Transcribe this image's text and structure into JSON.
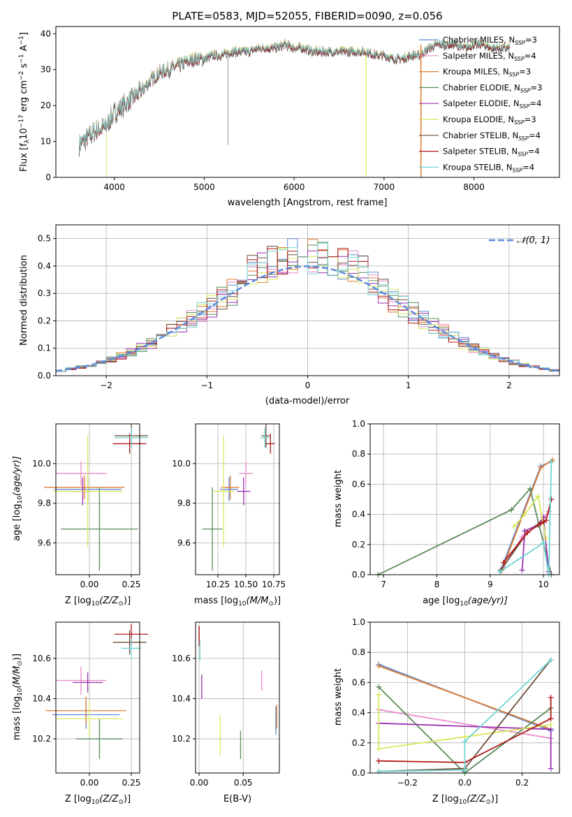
{
  "colors": {
    "chab_miles": "#5b8bd9",
    "salp_miles": "#e88ac8",
    "krou_miles": "#e07b2e",
    "chab_elod": "#5a8a5a",
    "salp_elod": "#9b2fb0",
    "krou_elod": "#d8e85a",
    "chab_stel": "#6b4e3a",
    "salp_stel": "#b01818",
    "krou_stel": "#70d4d4",
    "spec_main": "#7a7a7a",
    "gauss": "#5b8bd9",
    "grid": "#b0b0b0"
  },
  "spectrum": {
    "title": "PLATE=0583, MJD=52055, FIBERID=0090, z=0.056",
    "xlabel": "wavelength [Angstrom, rest frame]",
    "ylabel_a": "Flux [f",
    "ylabel_b": "λ",
    "ylabel_c": "10",
    "ylabel_d": "−17",
    "ylabel_e": " erg cm",
    "ylabel_f": "−2",
    "ylabel_g": " s",
    "ylabel_h": "−1",
    "ylabel_i": " A",
    "ylabel_j": "−1",
    "ylabel_k": "]",
    "xlim": [
      3350,
      8950
    ],
    "ylim": [
      0,
      42
    ],
    "xticks": [
      "4000",
      "5000",
      "6000",
      "7000",
      "8000"
    ],
    "yticks": [
      "0",
      "10",
      "20",
      "30",
      "40"
    ],
    "legend": [
      {
        "pre": "Chabrier MILES, N",
        "sub": "SSP",
        "post": "=3",
        "color": "chab_miles"
      },
      {
        "pre": "Salpeter MILES, N",
        "sub": "SSP",
        "post": "=4",
        "color": "salp_miles"
      },
      {
        "pre": "Kroupa MILES, N",
        "sub": "SSP",
        "post": "=3",
        "color": "krou_miles"
      },
      {
        "pre": "Chabrier ELODIE, N",
        "sub": "SSP",
        "post": "=3",
        "color": "chab_elod"
      },
      {
        "pre": "Salpeter ELODIE, N",
        "sub": "SSP",
        "post": "=4",
        "color": "salp_elod"
      },
      {
        "pre": "Kroupa ELODIE, N",
        "sub": "SSP",
        "post": "=3",
        "color": "krou_elod"
      },
      {
        "pre": "Chabrier STELIB, N",
        "sub": "SSP",
        "post": "=4",
        "color": "chab_stel"
      },
      {
        "pre": "Salpeter STELIB, N",
        "sub": "SSP",
        "post": "=4",
        "color": "salp_stel"
      },
      {
        "pre": "Kroupa STELIB, N",
        "sub": "SSP",
        "post": "=4",
        "color": "krou_stel"
      }
    ]
  },
  "residuals": {
    "xlabel": "(data-model)/error",
    "ylabel": "Normed distribution",
    "legend_label": "𝒩(0, 1)",
    "xlim": [
      -2.5,
      2.5
    ],
    "ylim": [
      0,
      0.55
    ],
    "xticks": [
      "−2",
      "−1",
      "0",
      "1",
      "2"
    ],
    "yticks": [
      "0.0",
      "0.1",
      "0.2",
      "0.3",
      "0.4",
      "0.5"
    ]
  },
  "age_Z": {
    "xlabel_a": "Z [log",
    "xlabel_b": "10",
    "xlabel_c": "(Z/Z",
    "xlabel_d": "⊙",
    "xlabel_e": ")]",
    "ylabel_a": "age  [log",
    "ylabel_b": "10",
    "ylabel_c": "(age/yr)]",
    "xlim": [
      -0.2,
      0.3
    ],
    "ylim": [
      9.44,
      10.2
    ],
    "xticks": [
      "0.00",
      "0.25"
    ],
    "yticks": [
      "9.6",
      "9.8",
      "10.0"
    ]
  },
  "age_mass": {
    "xlabel_a": "mass [log",
    "xlabel_b": "10",
    "xlabel_c": "(M/M",
    "xlabel_d": "⊙",
    "xlabel_e": ")]",
    "xlim": [
      10.05,
      10.8
    ],
    "ylim": [
      9.44,
      10.2
    ],
    "xticks": [
      "10.25",
      "10.50",
      "10.75"
    ],
    "yticks": [
      "9.6",
      "9.8",
      "10.0"
    ]
  },
  "mw_age": {
    "xlabel_a": "age  [log",
    "xlabel_b": "10",
    "xlabel_c": "(age/yr)]",
    "ylabel": "mass weight",
    "xlim": [
      6.75,
      10.3
    ],
    "ylim": [
      0,
      1
    ],
    "xticks": [
      "7",
      "8",
      "9",
      "10"
    ],
    "yticks": [
      "0.0",
      "0.2",
      "0.4",
      "0.6",
      "0.8",
      "1.0"
    ]
  },
  "mass_Z": {
    "xlabel_a": "Z [log",
    "xlabel_b": "10",
    "xlabel_c": "(Z/Z",
    "xlabel_d": "⊙",
    "xlabel_e": ")]",
    "ylabel_a": "mass [log",
    "ylabel_b": "10",
    "ylabel_c": "(M/M",
    "ylabel_d": "⊙",
    "ylabel_e": ")]",
    "xlim": [
      -0.2,
      0.3
    ],
    "ylim": [
      10.03,
      10.78
    ],
    "xticks": [
      "0.00",
      "0.25"
    ],
    "yticks": [
      "10.2",
      "10.4",
      "10.6"
    ]
  },
  "mass_ebv": {
    "xlabel": "E(B-V)",
    "xlim": [
      -0.004,
      0.091
    ],
    "ylim": [
      10.03,
      10.78
    ],
    "xticks": [
      "0.00",
      "0.05"
    ],
    "yticks": [
      "10.2",
      "10.4",
      "10.6"
    ]
  },
  "mw_Z": {
    "xlabel_a": "Z [log",
    "xlabel_b": "10",
    "xlabel_c": "(Z/Z",
    "xlabel_d": "⊙",
    "xlabel_e": ")]",
    "ylabel": "mass weight",
    "xlim": [
      -0.33,
      0.33
    ],
    "ylim": [
      0,
      1
    ],
    "xticks": [
      "−0.2",
      "0.0",
      "0.2"
    ],
    "yticks": [
      "0.0",
      "0.2",
      "0.4",
      "0.6",
      "0.8",
      "1.0"
    ]
  },
  "chart_data": [
    {
      "type": "line",
      "title": "PLATE=0583, MJD=52055, FIBERID=0090, z=0.056",
      "xlabel": "wavelength [Angstrom, rest frame]",
      "ylabel": "Flux [fλ 10^-17 erg cm^-2 s^-1 A^-1]",
      "xlim": [
        3350,
        8950
      ],
      "ylim": [
        0,
        42
      ],
      "continuum": {
        "x": [
          3600,
          3700,
          3800,
          3900,
          4000,
          4100,
          4200,
          4300,
          4400,
          4500,
          4600,
          4700,
          4800,
          4900,
          5000,
          5100,
          5200,
          5300,
          5400,
          5500,
          5600,
          5700,
          5800,
          5900,
          6000,
          6100,
          6200,
          6300,
          6400,
          6500,
          6600,
          6700,
          6800,
          6900,
          7000,
          7100,
          7200,
          7300,
          7400,
          7500,
          7600,
          7700,
          7800,
          7900,
          8000,
          8100,
          8200,
          8300,
          8400
        ],
        "y": [
          9,
          11,
          13,
          14,
          18,
          20,
          22,
          24,
          27,
          29,
          30,
          31,
          32,
          33,
          33,
          34,
          34,
          35,
          35,
          35,
          36,
          36,
          36,
          37,
          36,
          36,
          35,
          35,
          35,
          35,
          35,
          35,
          35,
          34,
          34,
          33,
          33,
          34,
          34,
          36,
          37,
          37,
          37,
          36,
          37,
          37,
          36,
          36,
          36
        ]
      },
      "legend": [
        "Chabrier MILES, N_SSP=3",
        "Salpeter MILES, N_SSP=4",
        "Kroupa MILES, N_SSP=3",
        "Chabrier ELODIE, N_SSP=3",
        "Salpeter ELODIE, N_SSP=4",
        "Kroupa ELODIE, N_SSP=3",
        "Chabrier STELIB, N_SSP=4",
        "Salpeter STELIB, N_SSP=4",
        "Kroupa STELIB, N_SSP=4"
      ],
      "legend_position": "upper-right"
    },
    {
      "type": "line",
      "xlabel": "(data-model)/error",
      "ylabel": "Normed distribution",
      "xlim": [
        -2.5,
        2.5
      ],
      "ylim": [
        0,
        0.55
      ],
      "grid": true,
      "histogram_style": "step",
      "series": [
        {
          "name": "𝒩(0, 1)",
          "style": "dashed",
          "function": "normal",
          "mu": 0,
          "sigma": 1
        }
      ],
      "legend_position": "upper-right"
    },
    {
      "type": "scatter",
      "panel": "age vs Z",
      "xlim": [
        -0.2,
        0.3
      ],
      "ylim": [
        9.44,
        10.2
      ],
      "points": [
        {
          "color": "chab_miles",
          "x": -0.01,
          "xerr": 0.2,
          "y": 9.87,
          "yerr": 0.06
        },
        {
          "color": "salp_miles",
          "x": -0.05,
          "xerr": 0.15,
          "y": 9.95,
          "yerr": 0.06
        },
        {
          "color": "krou_miles",
          "x": -0.03,
          "xerr": 0.24,
          "y": 9.88,
          "yerr": 0.06
        },
        {
          "color": "chab_elod",
          "x": 0.06,
          "xerr": 0.23,
          "y": 9.67,
          "yerr": 0.21
        },
        {
          "color": "salp_elod",
          "x": -0.04,
          "xerr": 0.06,
          "y": 9.86,
          "yerr": 0.07
        },
        {
          "color": "krou_elod",
          "x": -0.01,
          "xerr": 0.21,
          "y": 9.86,
          "yerr": 0.28
        },
        {
          "color": "chab_stel",
          "x": 0.25,
          "xerr": 0.1,
          "y": 10.14,
          "yerr": 0.06
        },
        {
          "color": "salp_stel",
          "x": 0.24,
          "xerr": 0.1,
          "y": 10.1,
          "yerr": 0.05
        },
        {
          "color": "krou_stel",
          "x": 0.25,
          "xerr": 0.1,
          "y": 10.13,
          "yerr": 0.05
        }
      ]
    },
    {
      "type": "scatter",
      "panel": "age vs mass",
      "xlim": [
        10.05,
        10.8
      ],
      "ylim": [
        9.44,
        10.2
      ],
      "points": [
        {
          "color": "chab_miles",
          "x": 10.35,
          "xerr": 0.08,
          "y": 9.87,
          "yerr": 0.06
        },
        {
          "color": "salp_miles",
          "x": 10.5,
          "xerr": 0.06,
          "y": 9.95,
          "yerr": 0.06
        },
        {
          "color": "krou_miles",
          "x": 10.36,
          "xerr": 0.08,
          "y": 9.88,
          "yerr": 0.06
        },
        {
          "color": "chab_elod",
          "x": 10.2,
          "xerr": 0.09,
          "y": 9.67,
          "yerr": 0.21
        },
        {
          "color": "salp_elod",
          "x": 10.48,
          "xerr": 0.06,
          "y": 9.86,
          "yerr": 0.07
        },
        {
          "color": "krou_elod",
          "x": 10.3,
          "xerr": 0.1,
          "y": 9.86,
          "yerr": 0.28
        },
        {
          "color": "chab_stel",
          "x": 10.68,
          "xerr": 0.04,
          "y": 10.14,
          "yerr": 0.06
        },
        {
          "color": "salp_stel",
          "x": 10.72,
          "xerr": 0.04,
          "y": 10.1,
          "yerr": 0.05
        },
        {
          "color": "krou_stel",
          "x": 10.67,
          "xerr": 0.04,
          "y": 10.13,
          "yerr": 0.05
        }
      ]
    },
    {
      "type": "line",
      "panel": "mass weight vs age",
      "xlabel": "age [log10(age/yr)]",
      "ylabel": "mass weight",
      "xlim": [
        6.75,
        10.3
      ],
      "ylim": [
        0,
        1
      ],
      "grid": true,
      "series": [
        {
          "color": "chab_miles",
          "x": [
            9.2,
            9.95,
            10.15
          ],
          "y": [
            0.03,
            0.72,
            0.75
          ]
        },
        {
          "color": "salp_miles",
          "x": [
            9.25,
            9.6,
            9.9,
            10.1
          ],
          "y": [
            0.05,
            0.25,
            0.33,
            0.42
          ]
        },
        {
          "color": "krou_miles",
          "x": [
            9.22,
            9.95,
            10.17
          ],
          "y": [
            0.03,
            0.71,
            0.76
          ]
        },
        {
          "color": "chab_elod",
          "x": [
            6.9,
            9.4,
            9.75,
            10.15
          ],
          "y": [
            0.0,
            0.43,
            0.57,
            0.0
          ]
        },
        {
          "color": "salp_elod",
          "x": [
            9.6,
            9.65,
            9.9,
            10.0,
            10.1
          ],
          "y": [
            0.03,
            0.29,
            0.33,
            0.38,
            0.02
          ]
        },
        {
          "color": "krou_elod",
          "x": [
            9.45,
            9.65,
            9.9,
            10.05
          ],
          "y": [
            0.32,
            0.4,
            0.52,
            0.24
          ]
        },
        {
          "color": "chab_stel",
          "x": [
            9.2,
            9.7,
            9.9,
            10.0
          ],
          "y": [
            0.03,
            0.28,
            0.33,
            0.35
          ]
        },
        {
          "color": "salp_stel",
          "x": [
            9.25,
            9.7,
            9.95,
            10.05,
            10.15
          ],
          "y": [
            0.08,
            0.28,
            0.34,
            0.36,
            0.5
          ]
        },
        {
          "color": "krou_stel",
          "x": [
            9.18,
            10.0,
            10.1,
            10.15
          ],
          "y": [
            0.02,
            0.21,
            0.0,
            0.75
          ]
        }
      ]
    },
    {
      "type": "scatter",
      "panel": "mass vs Z",
      "xlim": [
        -0.2,
        0.3
      ],
      "ylim": [
        10.03,
        10.78
      ],
      "points": [
        {
          "color": "chab_miles",
          "x": -0.02,
          "xerr": 0.2,
          "y": 10.32,
          "yerr": 0.07
        },
        {
          "color": "salp_miles",
          "x": -0.05,
          "xerr": 0.15,
          "y": 10.49,
          "yerr": 0.07
        },
        {
          "color": "krou_miles",
          "x": -0.02,
          "xerr": 0.24,
          "y": 10.34,
          "yerr": 0.07
        },
        {
          "color": "chab_elod",
          "x": 0.06,
          "xerr": 0.14,
          "y": 10.2,
          "yerr": 0.1
        },
        {
          "color": "salp_elod",
          "x": -0.01,
          "xerr": 0.09,
          "y": 10.48,
          "yerr": 0.05
        },
        {
          "color": "krou_elod",
          "x": 0.0,
          "xerr": 0.2,
          "y": 10.3,
          "yerr": 0.09
        },
        {
          "color": "chab_stel",
          "x": 0.24,
          "xerr": 0.1,
          "y": 10.68,
          "yerr": 0.06
        },
        {
          "color": "salp_stel",
          "x": 0.25,
          "xerr": 0.1,
          "y": 10.72,
          "yerr": 0.05
        },
        {
          "color": "krou_stel",
          "x": 0.25,
          "xerr": 0.06,
          "y": 10.65,
          "yerr": 0.05
        }
      ]
    },
    {
      "type": "scatter",
      "panel": "mass vs E(B-V)",
      "xlim": [
        -0.004,
        0.091
      ],
      "ylim": [
        10.03,
        10.78
      ],
      "points": [
        {
          "color": "chab_miles",
          "x": 0.087,
          "y": 10.29,
          "yerr": 0.07
        },
        {
          "color": "salp_miles",
          "x": 0.071,
          "y": 10.49,
          "yerr": 0.05
        },
        {
          "color": "krou_miles",
          "x": 0.088,
          "y": 10.31,
          "yerr": 0.06
        },
        {
          "color": "chab_elod",
          "x": 0.047,
          "y": 10.17,
          "yerr": 0.07
        },
        {
          "color": "salp_elod",
          "x": 0.003,
          "y": 10.46,
          "yerr": 0.06
        },
        {
          "color": "krou_elod",
          "x": 0.024,
          "y": 10.22,
          "yerr": 0.1
        },
        {
          "color": "chab_stel",
          "x": 0.0,
          "y": 10.72,
          "yerr": 0.04
        },
        {
          "color": "salp_stel",
          "x": 0.0,
          "y": 10.71,
          "yerr": 0.05
        },
        {
          "color": "krou_stel",
          "x": 0.001,
          "y": 10.64,
          "yerr": 0.05
        }
      ]
    },
    {
      "type": "line",
      "panel": "mass weight vs Z",
      "xlabel": "Z [log10(Z/Z_sun)]",
      "ylabel": "mass weight",
      "xlim": [
        -0.33,
        0.33
      ],
      "ylim": [
        0,
        1
      ],
      "grid": true,
      "series": [
        {
          "color": "chab_miles",
          "x": [
            -0.3,
            0.3
          ],
          "y": [
            0.72,
            0.28
          ]
        },
        {
          "color": "salp_miles",
          "x": [
            -0.3,
            0.3
          ],
          "y": [
            0.42,
            0.23
          ]
        },
        {
          "color": "krou_miles",
          "x": [
            -0.3,
            0.3
          ],
          "y": [
            0.71,
            0.29
          ]
        },
        {
          "color": "chab_elod",
          "x": [
            -0.3,
            0.0,
            0.3
          ],
          "y": [
            0.57,
            0.0,
            0.43
          ]
        },
        {
          "color": "salp_elod",
          "x": [
            -0.3,
            0.3,
            0.3
          ],
          "y": [
            0.33,
            0.29,
            0.03
          ]
        },
        {
          "color": "krou_elod",
          "x": [
            -0.3,
            -0.3,
            0.0,
            0.3
          ],
          "y": [
            0.52,
            0.16,
            0.24,
            0.32
          ]
        },
        {
          "color": "chab_stel",
          "x": [
            -0.3,
            0.0,
            0.3
          ],
          "y": [
            0.01,
            0.03,
            0.75
          ]
        },
        {
          "color": "salp_stel",
          "x": [
            -0.3,
            0.0,
            0.3,
            0.3
          ],
          "y": [
            0.08,
            0.07,
            0.36,
            0.5
          ]
        },
        {
          "color": "krou_stel",
          "x": [
            -0.3,
            0.0,
            0.0,
            0.3
          ],
          "y": [
            0.01,
            0.02,
            0.21,
            0.75
          ]
        }
      ]
    }
  ]
}
